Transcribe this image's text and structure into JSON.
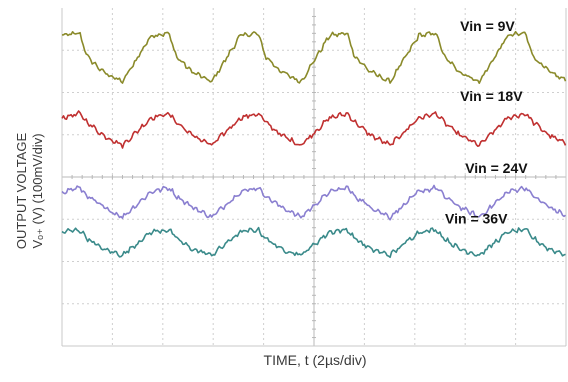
{
  "chart_data": {
    "type": "line",
    "title": "",
    "xlabel": "TIME, t (2µs/div)",
    "ylabel_line1": "OUTPUT VOLTAGE",
    "ylabel_line2": "Vₒ₊ (V) (100mV/div)",
    "x_units": "div",
    "y_units": "div",
    "xlim": [
      0,
      10
    ],
    "ylim": [
      0,
      8
    ],
    "grid": true,
    "period_div": 1.77,
    "series": [
      {
        "name": "Vin = 9V",
        "color": "#8a8a2a",
        "baseline_div": 6.4,
        "amplitude_div": 0.55,
        "x": [
          0,
          0.35,
          0.5,
          0.8,
          1.2,
          1.77,
          2.0,
          2.4,
          2.6
        ],
        "y": [
          7.35,
          7.4,
          6.85,
          6.5,
          6.25,
          7.3,
          7.45,
          7.2,
          6.8
        ]
      },
      {
        "name": "Vin = 18V",
        "color": "#c03030",
        "baseline_div": 4.9,
        "amplitude_div": 0.55,
        "x": [
          0,
          0.35,
          0.5,
          0.8,
          1.2,
          1.77,
          2.0,
          2.4,
          2.6
        ],
        "y": [
          5.4,
          5.5,
          5.3,
          5.0,
          4.75,
          5.45,
          5.55,
          5.4,
          5.2
        ]
      },
      {
        "name": "Vin = 24V",
        "color": "#8a7fd0",
        "baseline_div": 3.4,
        "amplitude_div": 0.55,
        "x": [
          0,
          0.35,
          0.5,
          0.8,
          1.2,
          1.77,
          2.0,
          2.4,
          2.6
        ],
        "y": [
          3.65,
          3.75,
          3.55,
          3.3,
          3.05,
          3.75,
          3.85,
          3.7,
          3.5
        ]
      },
      {
        "name": "Vin = 36V",
        "color": "#3a8a8a",
        "baseline_div": 2.25,
        "amplitude_div": 0.45,
        "x": [
          0,
          0.35,
          0.5,
          0.8,
          1.2,
          1.77,
          2.0,
          2.4,
          2.6
        ],
        "y": [
          2.7,
          2.75,
          2.55,
          2.3,
          2.15,
          2.7,
          2.75,
          2.65,
          2.5
        ]
      }
    ],
    "annotations": [
      {
        "text": "Vin = 9V",
        "x": 7.9,
        "y": 7.45
      },
      {
        "text": "Vin = 18V",
        "x": 7.9,
        "y": 5.8
      },
      {
        "text": "Vin = 24V",
        "x": 8.0,
        "y": 4.1
      },
      {
        "text": "Vin = 36V",
        "x": 7.6,
        "y": 2.9
      }
    ]
  }
}
